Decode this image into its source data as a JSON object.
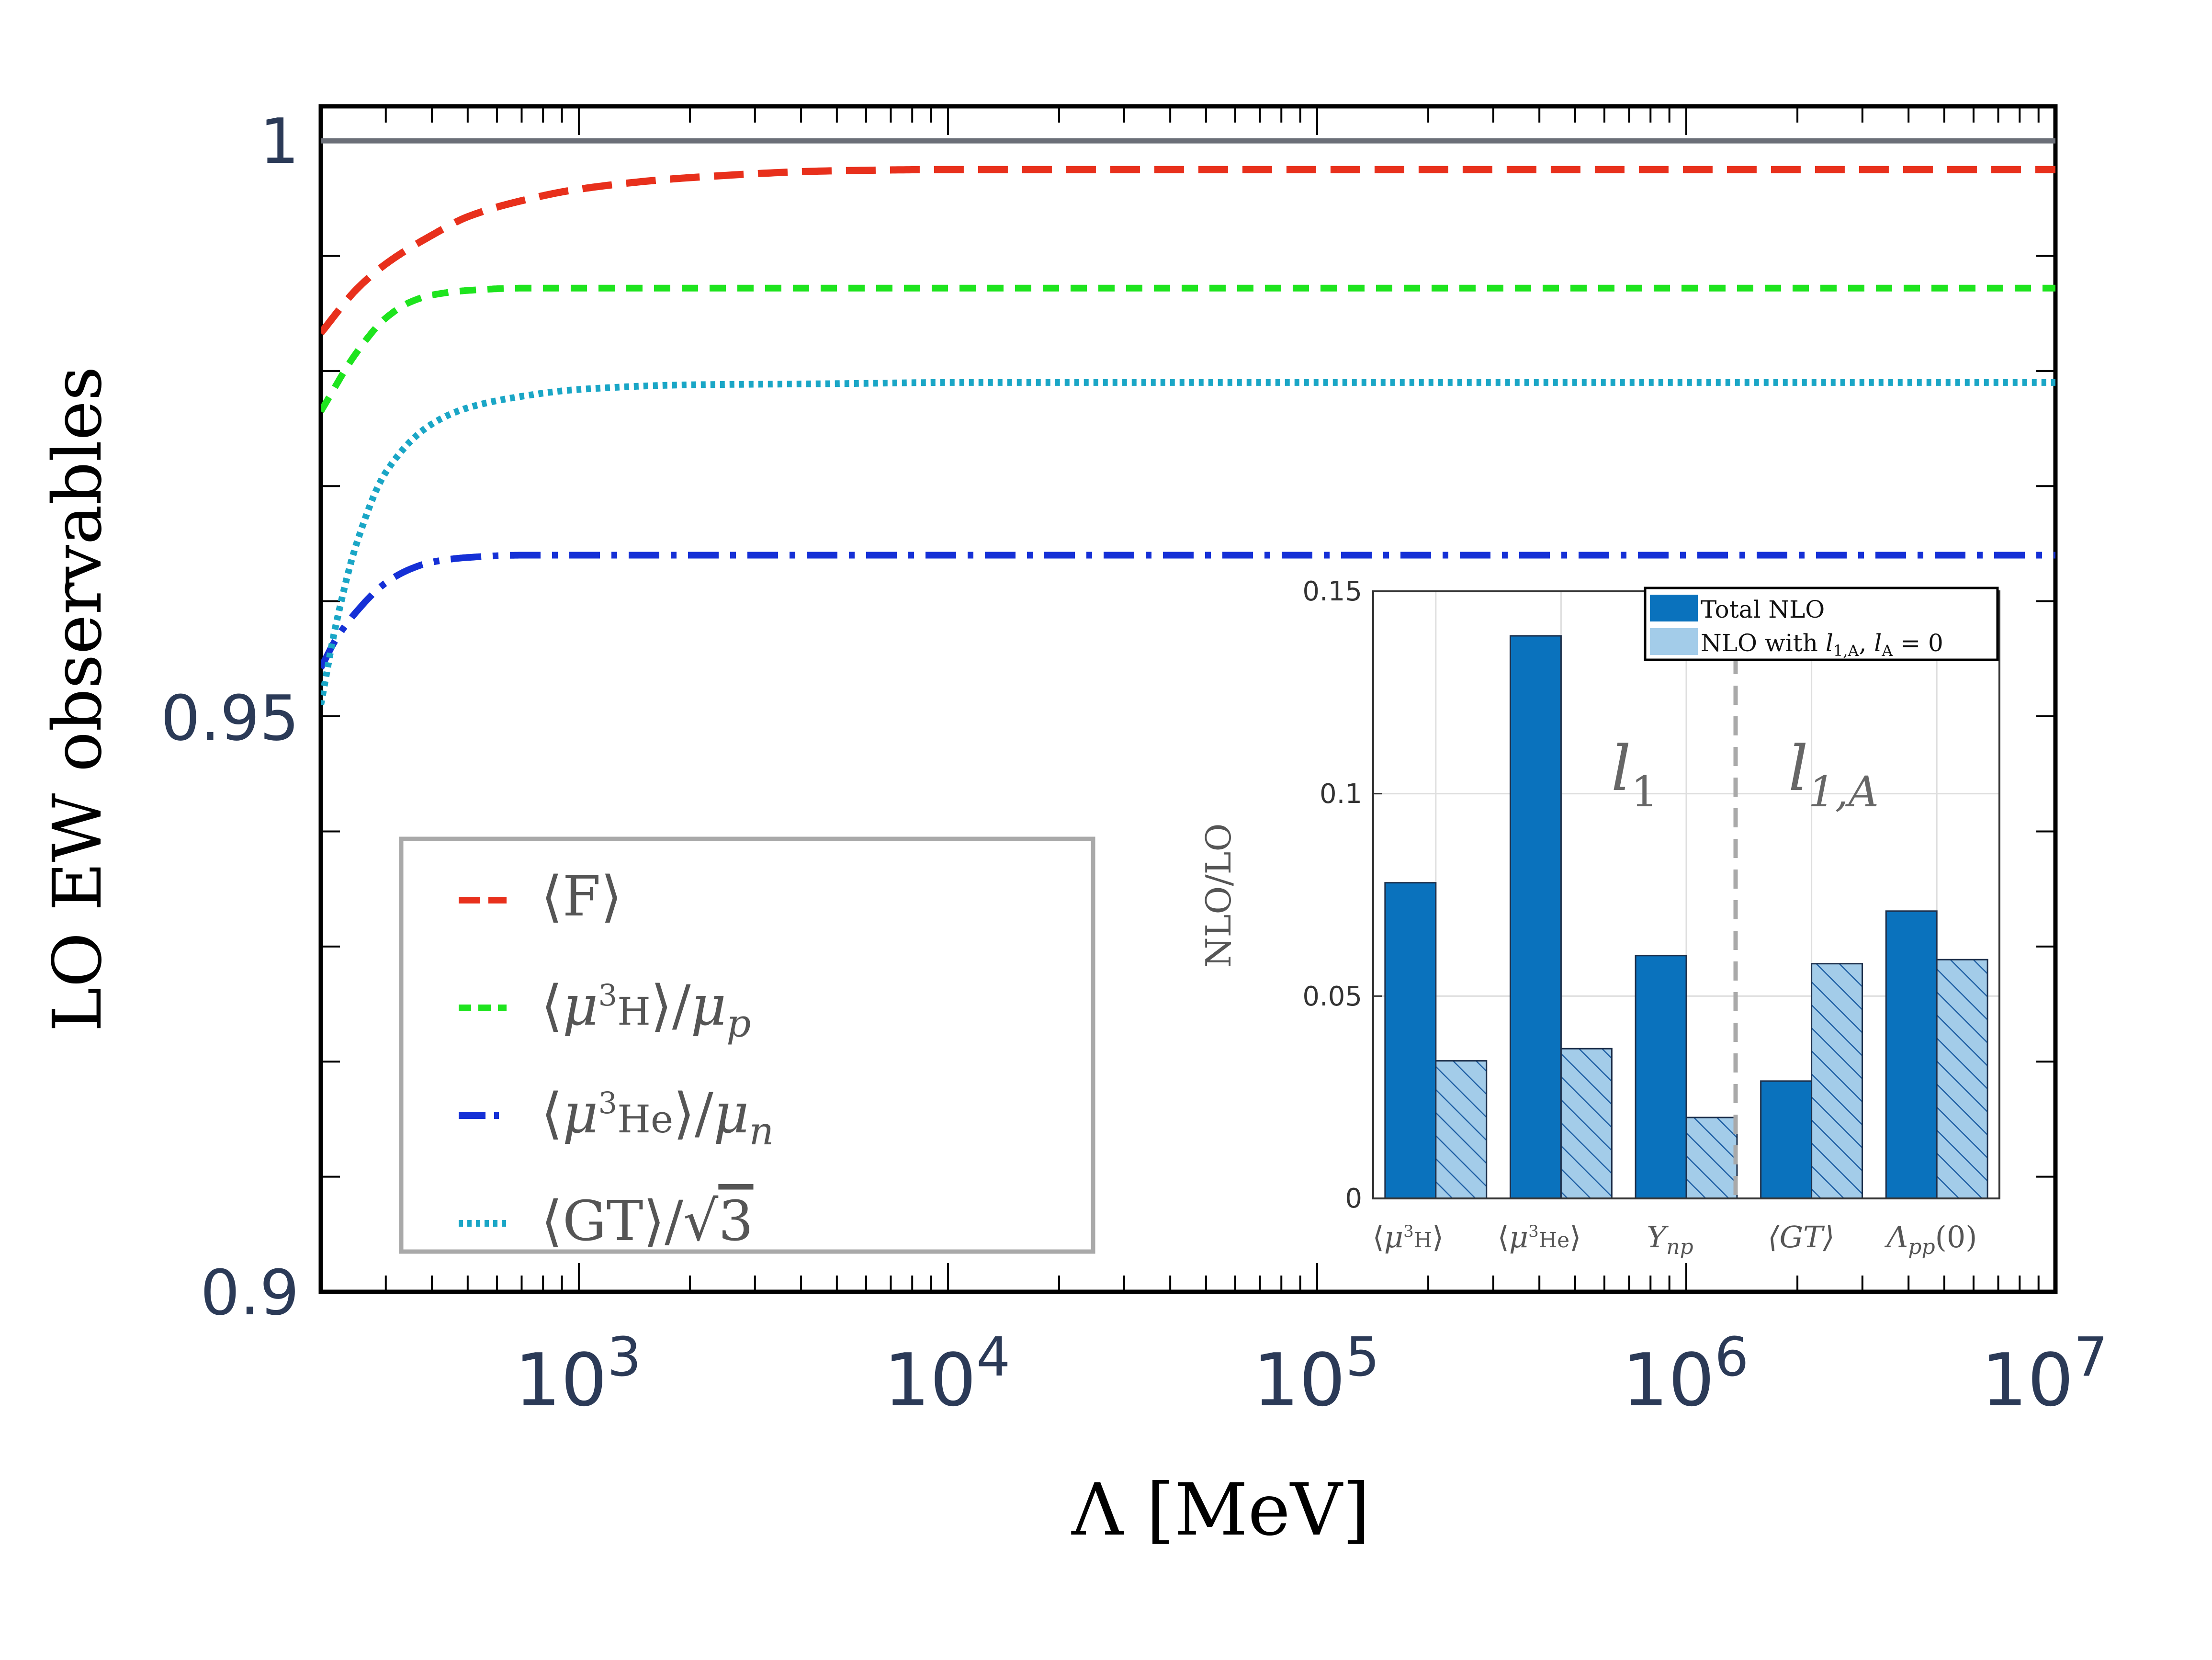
{
  "chart_data": [
    {
      "type": "line",
      "xlabel": "Λ [MeV]",
      "ylabel": "LO EW observables",
      "xscale": "log",
      "xlim": [
        200,
        10000000
      ],
      "ylim": [
        0.9,
        1.003
      ],
      "ytick_labels": [
        "0.9",
        "0.95",
        "1"
      ],
      "ytick_values": [
        0.9,
        0.95,
        1.0
      ],
      "xtick_bases": [
        "10",
        "10",
        "10",
        "10",
        "10"
      ],
      "xtick_exponents": [
        "3",
        "4",
        "5",
        "6",
        "7"
      ],
      "xtick_values": [
        1000,
        10000,
        100000,
        1000000,
        10000000
      ],
      "reference_line": {
        "y": 1.0,
        "color": "#6b6f78"
      },
      "legend_position": "lower-left",
      "series": [
        {
          "name": "⟨F⟩",
          "legend": {
            "open": "⟨F⟩"
          },
          "color": "#e8301c",
          "style": "dashed-long",
          "x": [
            200,
            250,
            300,
            400,
            500,
            700,
            1000,
            2000,
            5000,
            10000,
            100000,
            1000000,
            10000000
          ],
          "y": [
            0.9833,
            0.9871,
            0.9893,
            0.9918,
            0.9934,
            0.9948,
            0.9958,
            0.9968,
            0.9974,
            0.9975,
            0.9975,
            0.9975,
            0.9975
          ]
        },
        {
          "name": "⟨μ3H⟩/μp",
          "legend": {
            "open": "⟨",
            "mu": "μ",
            "sup": "3",
            "nucleus": "H",
            "close": "⟩/",
            "mu2": "μ",
            "sub": "p"
          },
          "color": "#1ee41e",
          "style": "dashed-medium",
          "x": [
            200,
            250,
            300,
            350,
            400,
            500,
            700,
            1000,
            10000,
            100000,
            1000000,
            10000000
          ],
          "y": [
            0.9765,
            0.9816,
            0.9846,
            0.986,
            0.9866,
            0.987,
            0.9872,
            0.9872,
            0.9872,
            0.9872,
            0.9872,
            0.9872
          ]
        },
        {
          "name": "⟨μ3He⟩/μn",
          "legend": {
            "open": "⟨",
            "mu": "μ",
            "sup": "3",
            "nucleus": "He",
            "close": "⟩/",
            "mu2": "μ",
            "sub": "n"
          },
          "color": "#1530d6",
          "style": "dash-dot",
          "x": [
            200,
            220,
            250,
            300,
            350,
            400,
            500,
            700,
            1000,
            10000,
            100000,
            1000000,
            10000000
          ],
          "y": [
            0.9542,
            0.9567,
            0.9591,
            0.9616,
            0.9628,
            0.9634,
            0.9638,
            0.964,
            0.964,
            0.964,
            0.964,
            0.964,
            0.964
          ]
        },
        {
          "name": "⟨GT⟩/√3",
          "legend": {
            "open": "⟨GT⟩/√",
            "radicand": "3"
          },
          "color": "#1aa6c6",
          "style": "dotted",
          "x": [
            200,
            220,
            250,
            300,
            400,
            500,
            700,
            1000,
            2000,
            5000,
            10000,
            100000,
            1000000,
            10000000
          ],
          "y": [
            0.951,
            0.958,
            0.965,
            0.9712,
            0.9754,
            0.9768,
            0.9778,
            0.9784,
            0.9788,
            0.9789,
            0.979,
            0.979,
            0.979,
            0.979
          ]
        }
      ]
    },
    {
      "type": "bar",
      "role": "inset",
      "ylabel": "NLO/LO",
      "ylim": [
        0,
        0.15
      ],
      "ytick_labels": [
        "0",
        "0.05",
        "0.1",
        "0.15"
      ],
      "ytick_values": [
        0,
        0.05,
        0.1,
        0.15
      ],
      "categories": [
        "⟨μ3H⟩",
        "⟨μ3He⟩",
        "Ynp",
        "⟨GT⟩",
        "Λpp(0)"
      ],
      "category_labels": [
        {
          "open": "⟨",
          "mu": "μ",
          "sup": "3",
          "nucleus": "H",
          "close": "⟩"
        },
        {
          "open": "⟨",
          "mu": "μ",
          "sup": "3",
          "nucleus": "He",
          "close": "⟩"
        },
        {
          "main": "Y",
          "sub": "np"
        },
        {
          "main": "⟨GT⟩"
        },
        {
          "main": "Λ",
          "sub": "pp",
          "tail": "(0)"
        }
      ],
      "legend_position": "top-right",
      "series": [
        {
          "name": "Total NLO",
          "color": "#0a72bd",
          "values": [
            0.078,
            0.139,
            0.06,
            0.029,
            0.071
          ]
        },
        {
          "name": "NLO with l1,A, lA = 0",
          "color": "#a3cce9",
          "hatch_color": "#1f5fa4",
          "values": [
            0.034,
            0.037,
            0.02,
            0.058,
            0.059
          ]
        }
      ],
      "legend_entries": [
        {
          "text": "Total NLO"
        },
        {
          "prefix": "NLO with ",
          "l1": "l",
          "l1_sub": "1,A",
          "comma": ", ",
          "l2": "l",
          "l2_sub": "A",
          "tail": " = 0"
        }
      ],
      "region_labels": [
        {
          "main": "l",
          "sub": "1"
        },
        {
          "main": "l",
          "sub": "1,A"
        }
      ],
      "divider": {
        "after_category": 2,
        "style": "dashed",
        "color": "#a9a9a9"
      }
    }
  ]
}
